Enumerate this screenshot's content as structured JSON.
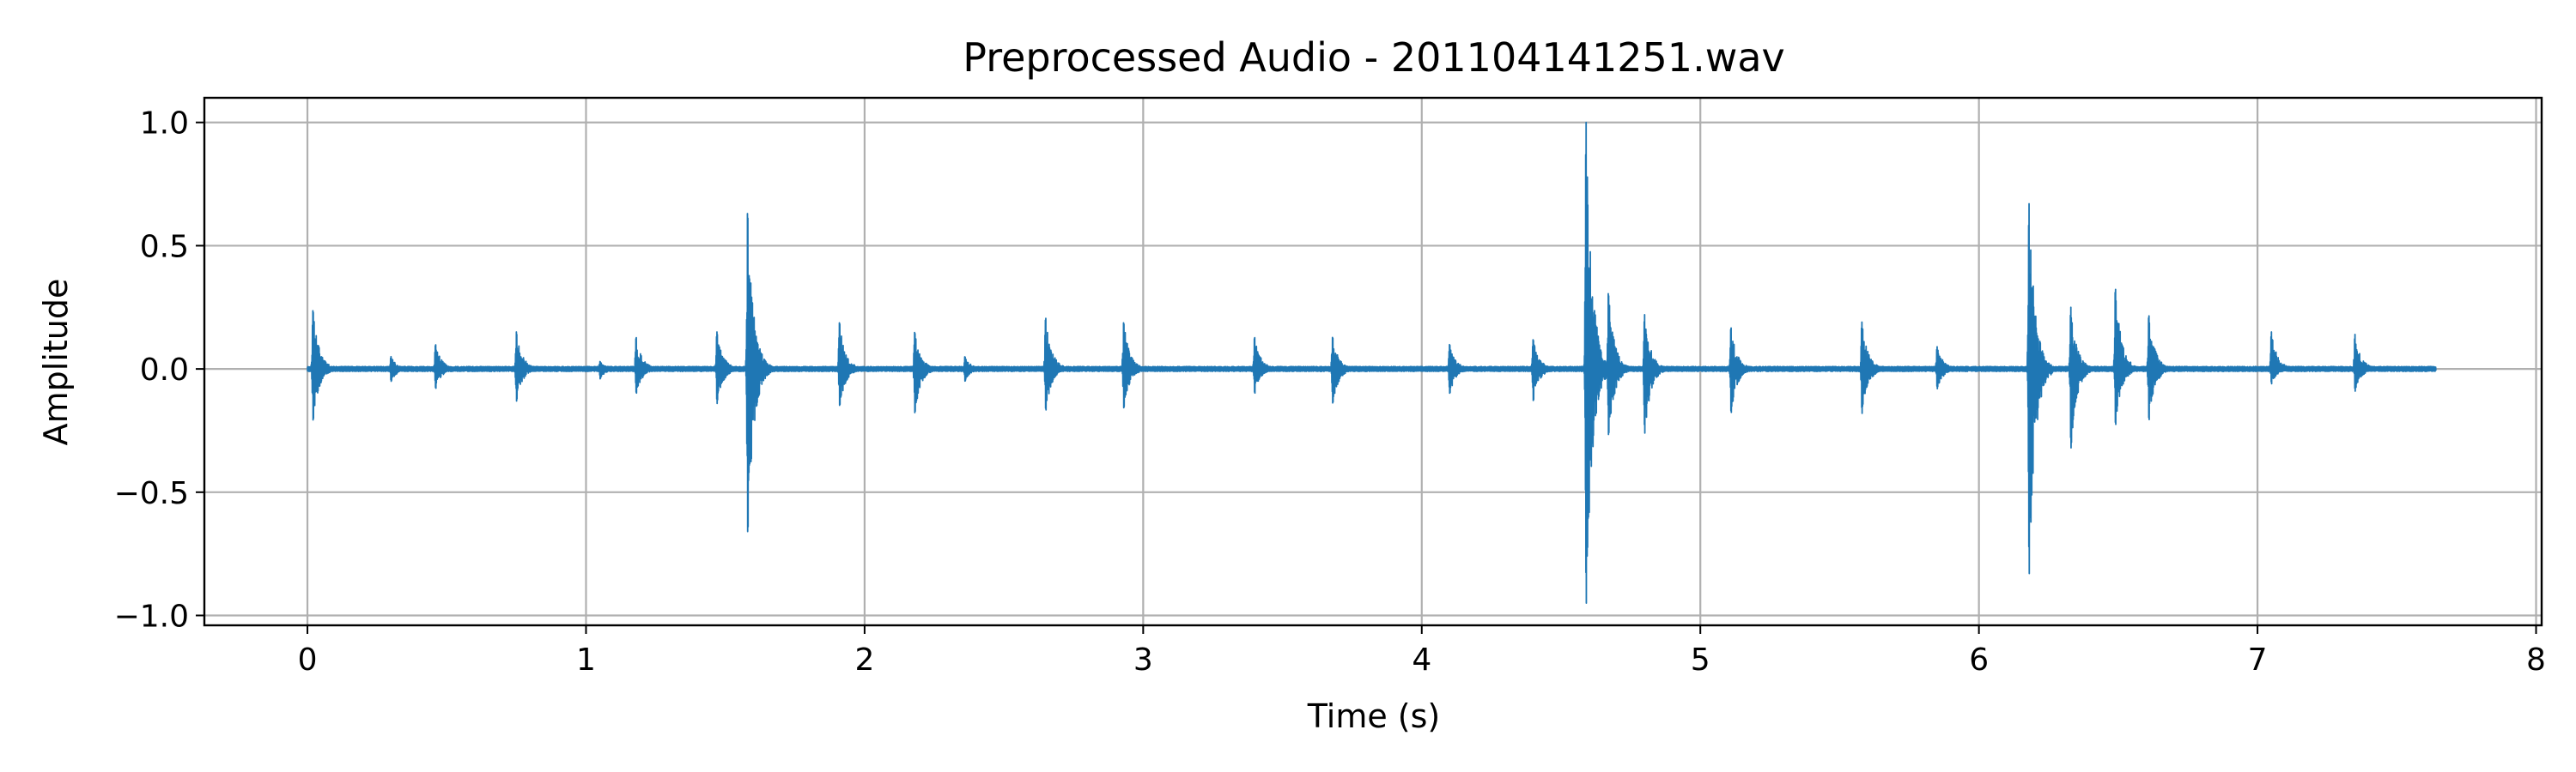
{
  "chart_data": {
    "type": "line",
    "title": "Preprocessed Audio - 201104141251.wav",
    "xlabel": "Time (s)",
    "ylabel": "Amplitude",
    "xlim": [
      -0.37,
      8.02
    ],
    "ylim": [
      -1.04,
      1.1
    ],
    "x_ticks": [
      0,
      1,
      2,
      3,
      4,
      5,
      6,
      7,
      8
    ],
    "x_tick_labels": [
      "0",
      "1",
      "2",
      "3",
      "4",
      "5",
      "6",
      "7",
      "8"
    ],
    "y_ticks": [
      1.0,
      0.5,
      0.0,
      -0.5,
      -1.0
    ],
    "y_tick_labels": [
      "1.0",
      "0.5",
      "0.0",
      "−0.5",
      "−1.0"
    ],
    "grid": true,
    "legend": "none",
    "series": [
      {
        "color": "#1f77b4",
        "duration": 7.64,
        "bursts": [
          {
            "t": 0.02,
            "max": 0.24,
            "min": -0.21
          },
          {
            "t": 0.3,
            "max": 0.05,
            "min": -0.05
          },
          {
            "t": 0.46,
            "max": 0.1,
            "min": -0.08
          },
          {
            "t": 0.75,
            "max": 0.15,
            "min": -0.13
          },
          {
            "t": 1.05,
            "max": 0.03,
            "min": -0.04
          },
          {
            "t": 1.18,
            "max": 0.13,
            "min": -0.1
          },
          {
            "t": 1.47,
            "max": 0.15,
            "min": -0.14
          },
          {
            "t": 1.58,
            "max": 0.64,
            "min": -0.67
          },
          {
            "t": 1.91,
            "max": 0.19,
            "min": -0.15
          },
          {
            "t": 2.18,
            "max": 0.15,
            "min": -0.18
          },
          {
            "t": 2.36,
            "max": 0.05,
            "min": -0.05
          },
          {
            "t": 2.65,
            "max": 0.21,
            "min": -0.17
          },
          {
            "t": 2.93,
            "max": 0.19,
            "min": -0.16
          },
          {
            "t": 3.4,
            "max": 0.13,
            "min": -0.1
          },
          {
            "t": 3.68,
            "max": 0.13,
            "min": -0.14
          },
          {
            "t": 4.1,
            "max": 0.1,
            "min": -0.1
          },
          {
            "t": 4.4,
            "max": 0.12,
            "min": -0.13
          },
          {
            "t": 4.59,
            "max": 1.0,
            "min": -0.95
          },
          {
            "t": 4.67,
            "max": 0.31,
            "min": -0.27
          },
          {
            "t": 4.8,
            "max": 0.22,
            "min": -0.26
          },
          {
            "t": 5.11,
            "max": 0.17,
            "min": -0.18
          },
          {
            "t": 5.58,
            "max": 0.19,
            "min": -0.18
          },
          {
            "t": 5.85,
            "max": 0.09,
            "min": -0.08
          },
          {
            "t": 6.18,
            "max": 0.67,
            "min": -0.83
          },
          {
            "t": 6.33,
            "max": 0.25,
            "min": -0.32
          },
          {
            "t": 6.49,
            "max": 0.33,
            "min": -0.23
          },
          {
            "t": 6.61,
            "max": 0.22,
            "min": -0.21
          },
          {
            "t": 7.05,
            "max": 0.15,
            "min": -0.06
          },
          {
            "t": 7.35,
            "max": 0.14,
            "min": -0.09
          }
        ]
      }
    ]
  }
}
